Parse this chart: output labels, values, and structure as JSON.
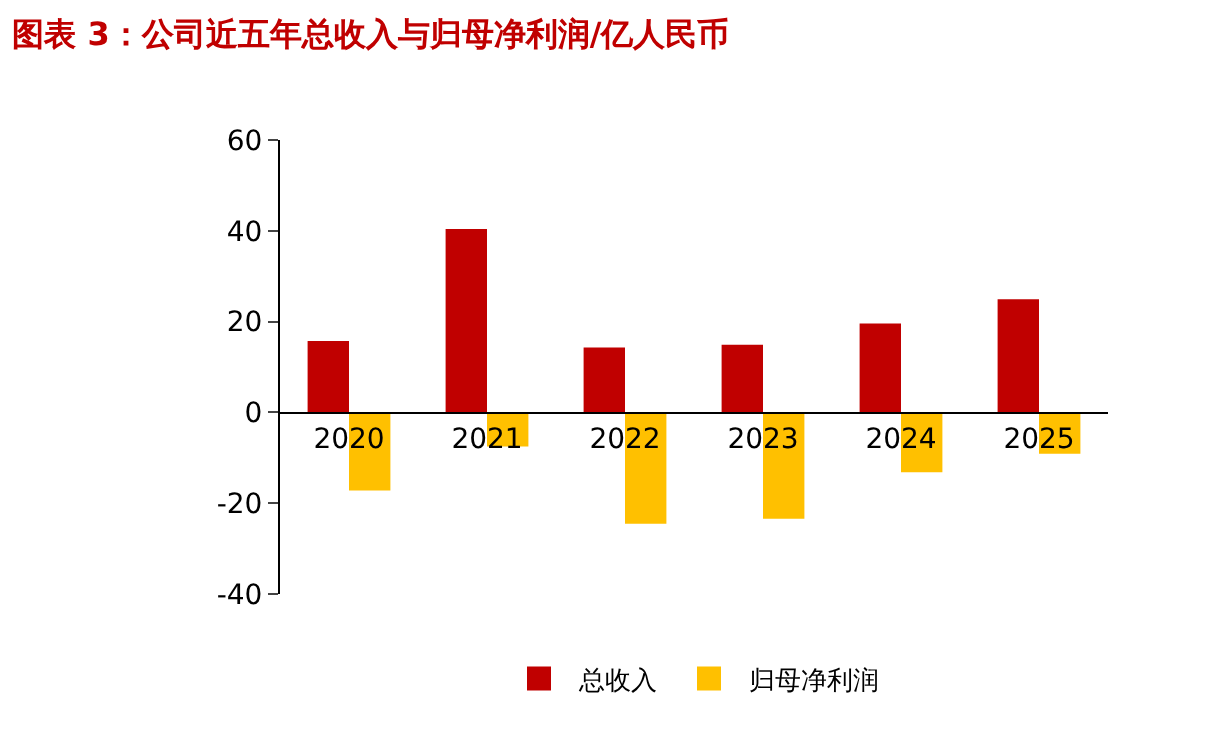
{
  "chart_data": {
    "type": "bar",
    "title": "图表 3：公司近五年总收入与归母净利润/亿人民币",
    "categories": [
      "2020",
      "2021",
      "2022",
      "2023",
      "2024",
      "2025"
    ],
    "series": [
      {
        "name": "总收入",
        "color": "#c00000",
        "values": [
          15.7,
          40.4,
          14.3,
          14.9,
          19.6,
          24.9
        ]
      },
      {
        "name": "归母净利润",
        "color": "#ffc000",
        "values": [
          -17.2,
          -7.5,
          -24.5,
          -23.4,
          -13.2,
          -9.1
        ]
      }
    ],
    "ylim": [
      -40,
      60
    ],
    "yticks": [
      -40,
      -20,
      0,
      20,
      40,
      60
    ],
    "legend": "bottom"
  }
}
